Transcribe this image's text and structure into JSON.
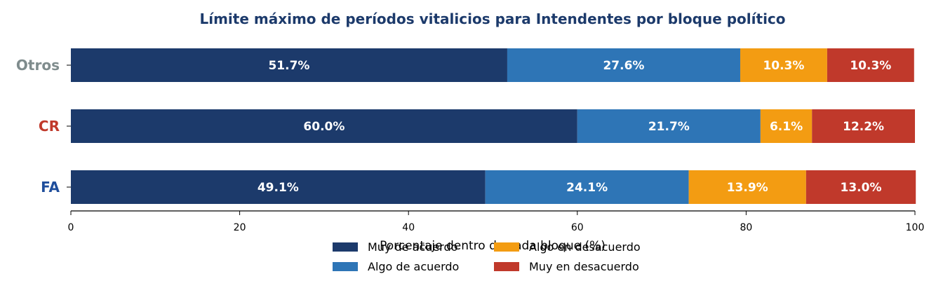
{
  "chart_data": {
    "type": "bar",
    "orientation": "horizontal",
    "stacked": true,
    "title": "Límite máximo de períodos vitalicios para Intendentes por bloque político",
    "xlabel": "Porcentaje dentro de cada bloque (%)",
    "ylabel": "",
    "xlim": [
      0,
      100
    ],
    "xticks": [
      0,
      20,
      40,
      60,
      80,
      100
    ],
    "grid": false,
    "legend_position": "bottom-center",
    "categories": [
      "Otros",
      "CR",
      "FA"
    ],
    "category_colors": [
      "#7f8c8d",
      "#c0392b",
      "#1f4e9c"
    ],
    "series": [
      {
        "name": "Muy de acuerdo",
        "color": "#1c3a6b",
        "values": [
          51.7,
          60.0,
          49.1
        ],
        "labels": [
          "51.7%",
          "60.0%",
          "49.1%"
        ]
      },
      {
        "name": "Algo de acuerdo",
        "color": "#2e75b6",
        "values": [
          27.6,
          21.7,
          24.1
        ],
        "labels": [
          "27.6%",
          "21.7%",
          "24.1%"
        ]
      },
      {
        "name": "Algo en desacuerdo",
        "color": "#f39c12",
        "values": [
          10.3,
          6.1,
          13.9
        ],
        "labels": [
          "10.3%",
          "6.1%",
          "13.9%"
        ]
      },
      {
        "name": "Muy en desacuerdo",
        "color": "#c0392b",
        "values": [
          10.3,
          12.2,
          13.0
        ],
        "labels": [
          "10.3%",
          "12.2%",
          "13.0%"
        ]
      }
    ],
    "title_color": "#1c3a6b"
  }
}
